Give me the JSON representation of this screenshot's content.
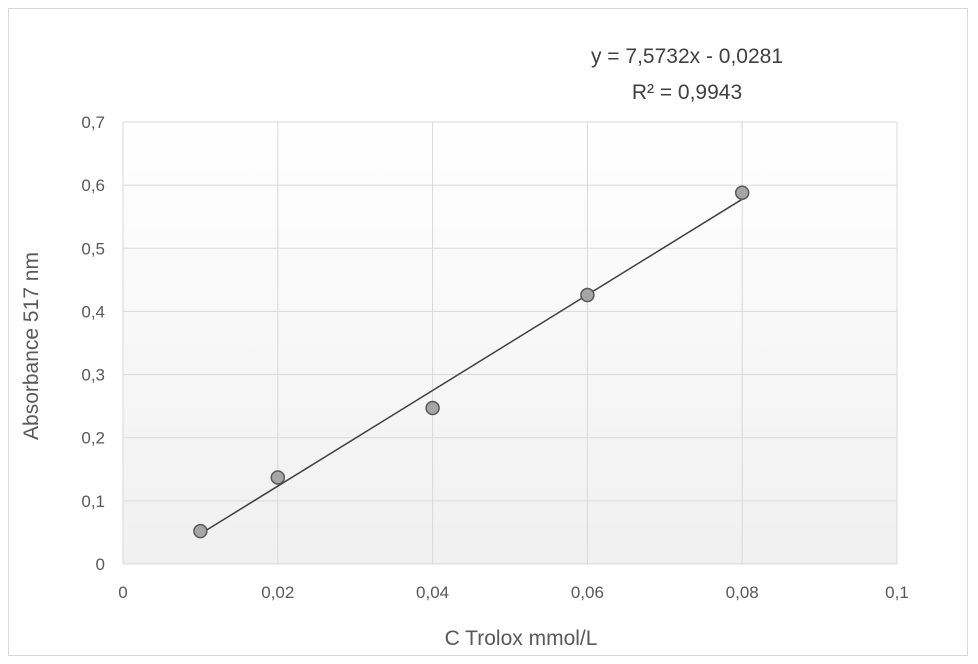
{
  "chart_data": {
    "type": "scatter",
    "title": "",
    "xlabel": "C Trolox mmol/L",
    "ylabel": "Absorbance 517 nm",
    "xlim": [
      0,
      0.1
    ],
    "ylim": [
      0,
      0.7
    ],
    "x_ticks": [
      "0",
      "0,02",
      "0,04",
      "0,06",
      "0,08",
      "0,1"
    ],
    "y_ticks": [
      "0",
      "0,1",
      "0,2",
      "0,3",
      "0,4",
      "0,5",
      "0,6",
      "0,7"
    ],
    "x_tick_values": [
      0,
      0.02,
      0.04,
      0.06,
      0.08,
      0.1
    ],
    "y_tick_values": [
      0,
      0.1,
      0.2,
      0.3,
      0.4,
      0.5,
      0.6,
      0.7
    ],
    "grid": true,
    "series": [
      {
        "x": [
          0.01,
          0.02,
          0.04,
          0.06,
          0.08
        ],
        "y": [
          0.052,
          0.137,
          0.247,
          0.426,
          0.588
        ],
        "marker_color": "#a6a6a6",
        "marker_edge": "#595959"
      }
    ],
    "trendline": {
      "slope": 7.5732,
      "intercept": -0.0281,
      "x_range": [
        0.01,
        0.08
      ],
      "color": "#404040",
      "equation": "y = 7,5732x - 0,0281",
      "r_squared": "R² = 0,9943"
    },
    "plot_background_gradient": [
      "#ffffff",
      "#f0f0f0"
    ],
    "grid_color": "#d9d9d9"
  }
}
